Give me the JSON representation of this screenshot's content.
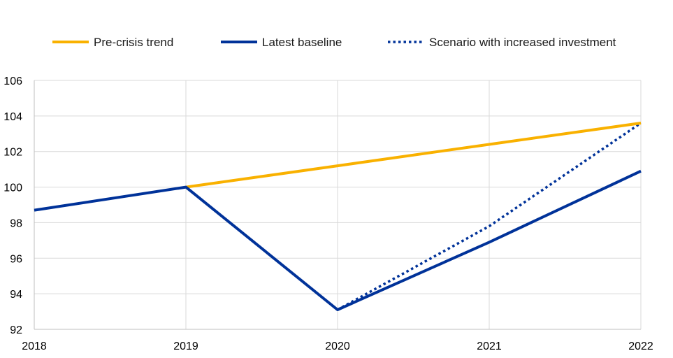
{
  "chart_data": {
    "type": "line",
    "title": "",
    "xlabel": "",
    "ylabel": "",
    "x": [
      2018,
      2019,
      2020,
      2021,
      2022
    ],
    "x_tick_labels": [
      "2018",
      "2019",
      "2020",
      "2021",
      "2022"
    ],
    "ylim": [
      92,
      106
    ],
    "y_ticks": [
      92,
      94,
      96,
      98,
      100,
      102,
      104,
      106
    ],
    "y_tick_labels": [
      "92",
      "94",
      "96",
      "98",
      "100",
      "102",
      "104",
      "106"
    ],
    "grid": true,
    "legend_position": "top",
    "series": [
      {
        "name": "Pre-crisis trend",
        "color": "#F9B100",
        "style": "solid",
        "x": [
          2019,
          2020,
          2021,
          2022
        ],
        "values": [
          100.0,
          101.2,
          102.4,
          103.6
        ]
      },
      {
        "name": "Latest baseline",
        "color": "#003299",
        "style": "solid",
        "x": [
          2018,
          2019,
          2020,
          2021,
          2022
        ],
        "values": [
          98.7,
          100.0,
          93.1,
          96.9,
          100.9
        ]
      },
      {
        "name": "Scenario with increased investment",
        "color": "#003299",
        "style": "dotted",
        "x": [
          2020,
          2021,
          2022
        ],
        "values": [
          93.1,
          97.8,
          103.6
        ]
      }
    ]
  }
}
